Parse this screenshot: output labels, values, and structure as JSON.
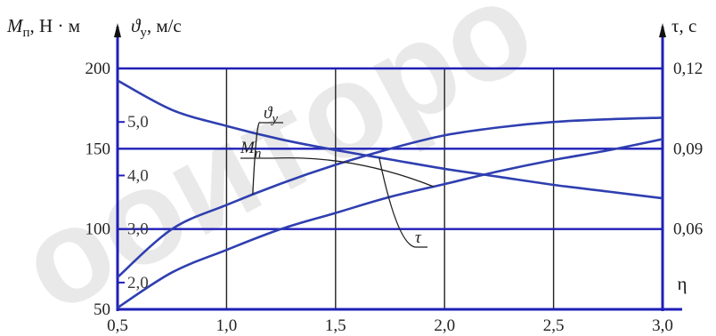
{
  "chart_data": {
    "type": "line",
    "x_axis": {
      "label": "η",
      "ticks": [
        "0,5",
        "1,0",
        "1,5",
        "2,0",
        "2,5",
        "3,0"
      ],
      "range": [
        0.5,
        3.0
      ]
    },
    "left_axis": {
      "label_main": "M",
      "label_sub": "п",
      "label_rest": ", Н · м",
      "range": [
        50,
        200
      ],
      "ticks": [
        "50",
        "100",
        "150",
        "200"
      ]
    },
    "left_inner_axis": {
      "label_main": "ϑ",
      "label_sub": "у",
      "label_rest": ", м/с",
      "range": [
        1.5,
        6.0
      ],
      "ticks": [
        "2,0",
        "3,0",
        "4,0",
        "5,0"
      ]
    },
    "right_axis": {
      "label": "τ, с",
      "range": [
        0.03,
        0.12
      ],
      "ticks": [
        "0,06",
        "0,09",
        "0,12"
      ]
    },
    "gridlines_y": [
      200,
      150,
      100
    ],
    "gridlines_x": [
      1.0,
      1.5,
      2.0,
      2.5,
      3.0
    ],
    "series": [
      {
        "name": "ϑу",
        "label_main": "ϑ",
        "label_sub": "у",
        "axis": "left_inner",
        "x": [
          0.5,
          0.75,
          1.0,
          1.25,
          1.5,
          1.75,
          2.0,
          2.25,
          2.5,
          2.75,
          3.0
        ],
        "y": [
          2.1,
          3.0,
          3.45,
          3.85,
          4.2,
          4.5,
          4.75,
          4.9,
          5.0,
          5.05,
          5.08
        ]
      },
      {
        "name": "Mп",
        "label_main": "M",
        "label_sub": "п",
        "axis": "left",
        "x": [
          0.5,
          0.75,
          1.0,
          1.25,
          1.5,
          1.75,
          2.0,
          2.25,
          2.5,
          2.75,
          3.0
        ],
        "y": [
          51,
          73,
          87,
          100,
          110,
          120,
          128,
          136,
          143,
          149,
          156
        ]
      },
      {
        "name": "τ",
        "label_main": "τ",
        "axis": "right",
        "x": [
          0.5,
          0.75,
          1.0,
          1.25,
          1.5,
          1.75,
          2.0,
          2.25,
          2.5,
          2.75,
          3.0
        ],
        "y": [
          0.1155,
          0.1045,
          0.0985,
          0.0935,
          0.0895,
          0.086,
          0.0825,
          0.0795,
          0.0765,
          0.074,
          0.0715
        ]
      }
    ],
    "colors": {
      "axis": "#1f1fb8",
      "curve": "#2f3fb0",
      "grid": "#222222"
    },
    "watermark": "ооиторо"
  }
}
